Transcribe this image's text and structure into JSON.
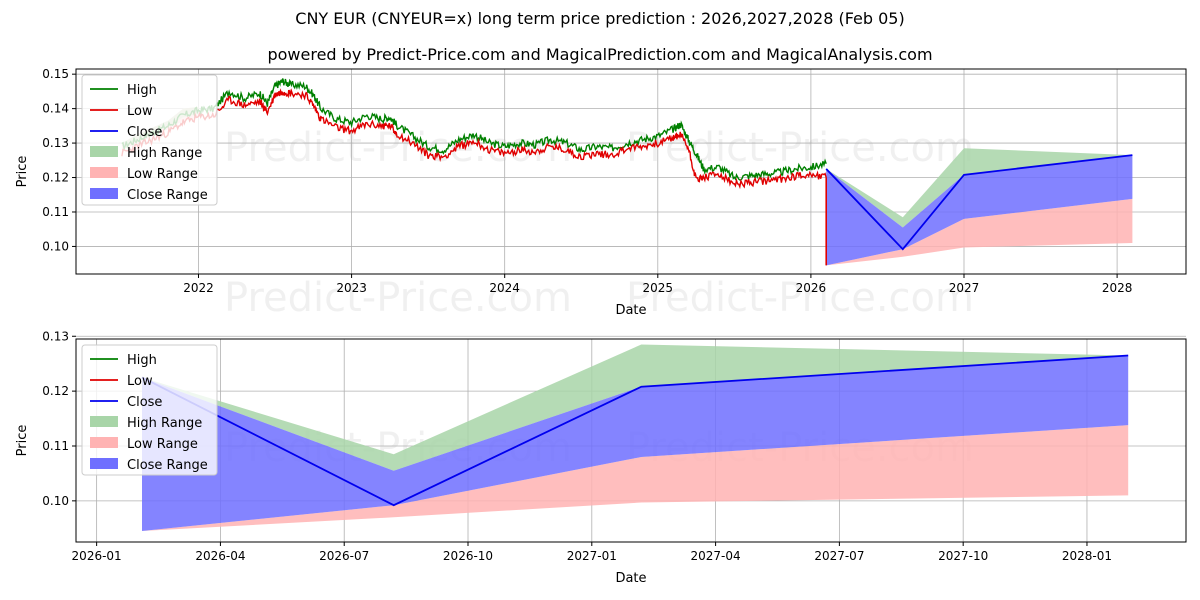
{
  "title": "CNY EUR (CNYEUR=x) long term price prediction : 2026,2027,2028 (Feb 05)",
  "subtitle": "powered by Predict-Price.com and MagicalPrediction.com and MagicalAnalysis.com",
  "watermark": "Predict-Price.com",
  "colors": {
    "high": "#008000",
    "low": "#e00000",
    "close": "#0000ee",
    "high_range": "#a8d5a8",
    "low_range": "#ffb3b3",
    "close_range": "#6f6fff"
  },
  "chart_data": [
    {
      "type": "line",
      "name": "overview",
      "xlabel": "Date",
      "ylabel": "Price",
      "x_ticks": [
        "2022",
        "2023",
        "2024",
        "2025",
        "2026",
        "2027",
        "2028"
      ],
      "x_tick_values": [
        2022.0,
        2023.0,
        2024.0,
        2025.0,
        2026.0,
        2027.0,
        2028.0
      ],
      "xlim": [
        2021.2,
        2028.45
      ],
      "y_ticks": [
        "0.10",
        "0.11",
        "0.12",
        "0.13",
        "0.14",
        "0.15"
      ],
      "y_tick_values": [
        0.1,
        0.11,
        0.12,
        0.13,
        0.14,
        0.15
      ],
      "ylim": [
        0.092,
        0.1515
      ],
      "grid": true,
      "legend": [
        "High",
        "Low",
        "Close",
        "High Range",
        "Low Range",
        "Close Range"
      ],
      "legend_position": "top-left",
      "history": {
        "x": [
          2021.5,
          2021.6,
          2021.7,
          2021.8,
          2021.9,
          2022.0,
          2022.1,
          2022.2,
          2022.3,
          2022.4,
          2022.45,
          2022.5,
          2022.55,
          2022.6,
          2022.7,
          2022.75,
          2022.8,
          2022.9,
          2023.0,
          2023.1,
          2023.2,
          2023.25,
          2023.3,
          2023.4,
          2023.5,
          2023.6,
          2023.7,
          2023.8,
          2023.9,
          2024.0,
          2024.1,
          2024.2,
          2024.3,
          2024.4,
          2024.5,
          2024.6,
          2024.7,
          2024.8,
          2024.9,
          2025.0,
          2025.1,
          2025.15,
          2025.2,
          2025.25,
          2025.3,
          2025.4,
          2025.5,
          2025.6,
          2025.7,
          2025.8,
          2025.9,
          2026.0,
          2026.1
        ],
        "high": [
          0.129,
          0.131,
          0.133,
          0.135,
          0.138,
          0.1395,
          0.14,
          0.145,
          0.143,
          0.1445,
          0.1415,
          0.1465,
          0.148,
          0.147,
          0.1465,
          0.144,
          0.14,
          0.137,
          0.136,
          0.138,
          0.137,
          0.1375,
          0.135,
          0.132,
          0.129,
          0.128,
          0.131,
          0.1325,
          0.13,
          0.129,
          0.13,
          0.1295,
          0.131,
          0.13,
          0.128,
          0.129,
          0.1285,
          0.13,
          0.131,
          0.132,
          0.134,
          0.1355,
          0.131,
          0.127,
          0.1225,
          0.123,
          0.12,
          0.1205,
          0.121,
          0.1215,
          0.1225,
          0.123,
          0.124
        ],
        "low": [
          0.127,
          0.129,
          0.131,
          0.133,
          0.136,
          0.1375,
          0.138,
          0.1425,
          0.141,
          0.142,
          0.139,
          0.144,
          0.145,
          0.1445,
          0.144,
          0.141,
          0.137,
          0.1345,
          0.1335,
          0.1355,
          0.135,
          0.135,
          0.1325,
          0.13,
          0.1265,
          0.126,
          0.129,
          0.1305,
          0.128,
          0.127,
          0.128,
          0.1275,
          0.129,
          0.128,
          0.126,
          0.127,
          0.1265,
          0.1285,
          0.129,
          0.13,
          0.1315,
          0.1325,
          0.1285,
          0.1195,
          0.12,
          0.121,
          0.118,
          0.1185,
          0.119,
          0.1195,
          0.1205,
          0.121,
          0.12
        ]
      },
      "early_range": {
        "x": [
          2021.5,
          2021.6,
          2021.7,
          2021.8,
          2021.9,
          2022.0
        ],
        "high": [
          0.13,
          0.1325,
          0.1345,
          0.1365,
          0.14,
          0.1405
        ],
        "low": [
          0.128,
          0.13,
          0.132,
          0.134,
          0.1365,
          0.1375
        ]
      },
      "low_spike": {
        "x": 2026.1,
        "from": 0.12,
        "to": 0.0945
      },
      "forecast": {
        "x": [
          2026.1,
          2026.6,
          2027.0,
          2028.1
        ],
        "close": [
          0.1225,
          0.0992,
          0.1208,
          0.1265
        ],
        "high_range": {
          "upper": [
            0.1225,
            0.1085,
            0.1285,
            0.1265
          ],
          "lower": [
            0.1225,
            0.1055,
            0.1208,
            0.1265
          ]
        },
        "close_range": {
          "upper": [
            0.1225,
            0.1055,
            0.1208,
            0.1265
          ],
          "lower": [
            0.0945,
            0.0992,
            0.108,
            0.1138
          ]
        },
        "low_range": {
          "upper": [
            0.0945,
            0.0992,
            0.108,
            0.1138
          ],
          "lower": [
            0.0945,
            0.097,
            0.0997,
            0.101
          ]
        }
      }
    },
    {
      "type": "line",
      "name": "forecast-detail",
      "xlabel": "Date",
      "ylabel": "Price",
      "x_ticks": [
        "2026-01",
        "2026-04",
        "2026-07",
        "2026-10",
        "2027-01",
        "2027-04",
        "2027-07",
        "2027-10",
        "2028-01"
      ],
      "x_tick_values": [
        0,
        3,
        6,
        9,
        12,
        15,
        18,
        21,
        24
      ],
      "x_unit": "months since 2026-01",
      "xlim": [
        -0.5,
        26.4
      ],
      "y_ticks": [
        "0.10",
        "0.11",
        "0.12",
        "0.13"
      ],
      "y_tick_values": [
        0.1,
        0.11,
        0.12,
        0.13
      ],
      "ylim": [
        0.0925,
        0.1295
      ],
      "grid": true,
      "legend": [
        "High",
        "Low",
        "Close",
        "High Range",
        "Low Range",
        "Close Range"
      ],
      "legend_position": "top-left",
      "forecast": {
        "x": [
          1.1,
          7.2,
          13.2,
          25.0
        ],
        "close": [
          0.1225,
          0.0992,
          0.1208,
          0.1265
        ],
        "high_range": {
          "upper": [
            0.1225,
            0.1085,
            0.1285,
            0.1265
          ],
          "lower": [
            0.1225,
            0.1055,
            0.1208,
            0.1265
          ]
        },
        "close_range": {
          "upper": [
            0.1225,
            0.1055,
            0.1208,
            0.1265
          ],
          "lower": [
            0.0945,
            0.0992,
            0.108,
            0.1138
          ]
        },
        "low_range": {
          "upper": [
            0.0945,
            0.0992,
            0.108,
            0.1138
          ],
          "lower": [
            0.0945,
            0.097,
            0.0997,
            0.101
          ]
        }
      }
    }
  ]
}
